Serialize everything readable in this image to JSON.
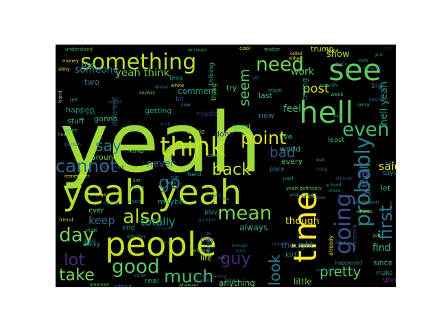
{
  "word_cloud": {
    "background": "#000000",
    "palette": [
      "#440154",
      "#3b528b",
      "#21918c",
      "#5ec962",
      "#a0da39",
      "#fde725"
    ],
    "words": [
      {
        "text": "yeah",
        "color": "#a0da39"
      },
      {
        "text": "time",
        "color": "#fde725"
      },
      {
        "text": "people",
        "color": "#c8e020"
      },
      {
        "text": "yeah yeah",
        "color": "#b5de2b"
      },
      {
        "text": "think",
        "color": "#c8e020"
      },
      {
        "text": "hell",
        "color": "#5ec962"
      },
      {
        "text": "see",
        "color": "#5ec962"
      },
      {
        "text": "something",
        "color": "#b5de2b"
      },
      {
        "text": "need",
        "color": "#7ad151"
      },
      {
        "text": "going",
        "color": "#3b528b"
      },
      {
        "text": "probably",
        "color": "#26828e"
      },
      {
        "text": "even",
        "color": "#3fbc73"
      },
      {
        "text": "first",
        "color": "#2a788e"
      },
      {
        "text": "year",
        "color": "#3b528b"
      },
      {
        "text": "point",
        "color": "#d8e219"
      },
      {
        "text": "say",
        "color": "#2a788e"
      },
      {
        "text": "cannot",
        "color": "#31688e"
      },
      {
        "text": "go",
        "color": "#31688e"
      },
      {
        "text": "back",
        "color": "#c8e020"
      },
      {
        "text": "mean",
        "color": "#7ad151"
      },
      {
        "text": "also",
        "color": "#b5de2b"
      },
      {
        "text": "day",
        "color": "#7ad151"
      },
      {
        "text": "good",
        "color": "#5ec962"
      },
      {
        "text": "lot",
        "color": "#482878"
      },
      {
        "text": "take",
        "color": "#7ad151"
      },
      {
        "text": "much",
        "color": "#3fbc73"
      },
      {
        "text": "guy",
        "color": "#482878"
      },
      {
        "text": "look",
        "color": "#2a788e"
      },
      {
        "text": "pretty",
        "color": "#5ec962"
      },
      {
        "text": "said",
        "color": "#fde725"
      },
      {
        "text": "seem",
        "color": "#5ec962"
      },
      {
        "text": "post",
        "color": "#d8e219"
      },
      {
        "text": "bad",
        "color": "#3b528b"
      },
      {
        "text": "keep",
        "color": "#31688e"
      },
      {
        "text": "totally",
        "color": "#1f9e89"
      },
      {
        "text": "never",
        "color": "#31688e"
      },
      {
        "text": "yeah think",
        "color": "#7ad151"
      },
      {
        "text": "someone",
        "color": "#2a788e"
      },
      {
        "text": "work",
        "color": "#5ec962"
      },
      {
        "text": "feel",
        "color": "#3fbc73"
      },
      {
        "text": "show",
        "color": "#b5de2b"
      },
      {
        "text": "trump",
        "color": "#c8e020"
      },
      {
        "text": "hell yeah",
        "color": "#1f9e89"
      },
      {
        "text": "find",
        "color": "#3fbc73"
      },
      {
        "text": "let",
        "color": "#35b779"
      },
      {
        "text": "kid",
        "color": "#2a788e"
      },
      {
        "text": "thought",
        "color": "#3b528b"
      },
      {
        "text": "little",
        "color": "#7ad151"
      },
      {
        "text": "anything",
        "color": "#5ec962"
      },
      {
        "text": "always",
        "color": "#35b779"
      },
      {
        "text": "though",
        "color": "#fde725"
      },
      {
        "text": "two",
        "color": "#31688e"
      },
      {
        "text": "use",
        "color": "#1f9e89"
      },
      {
        "text": "happen",
        "color": "#1f9e89"
      },
      {
        "text": "stuff",
        "color": "#35b779"
      },
      {
        "text": "gonna",
        "color": "#35b779"
      },
      {
        "text": "getting",
        "color": "#1f9e89"
      },
      {
        "text": "different",
        "color": "#31688e"
      },
      {
        "text": "comment",
        "color": "#1f9e89"
      },
      {
        "text": "kind",
        "color": "#5ec962"
      },
      {
        "text": "around",
        "color": "#7ad151"
      },
      {
        "text": "maybe",
        "color": "#1f9e89"
      },
      {
        "text": "ever",
        "color": "#5ec962"
      },
      {
        "text": "end",
        "color": "#21918c"
      },
      {
        "text": "away",
        "color": "#21918c"
      },
      {
        "text": "used",
        "color": "#5ec962"
      },
      {
        "text": "live",
        "color": "#35b779"
      },
      {
        "text": "world",
        "color": "#35b779"
      },
      {
        "text": "trying",
        "color": "#1f9e89"
      },
      {
        "text": "last",
        "color": "#3fbc73"
      },
      {
        "text": "new",
        "color": "#2a788e"
      },
      {
        "text": "try",
        "color": "#3fbc73"
      },
      {
        "text": "done",
        "color": "#482878"
      },
      {
        "text": "made",
        "color": "#482878"
      },
      {
        "text": "every",
        "color": "#5ec962"
      },
      {
        "text": "since",
        "color": "#3fbc73"
      },
      {
        "text": "give",
        "color": "#482878"
      },
      {
        "text": "real",
        "color": "#1f9e89"
      },
      {
        "text": "life",
        "color": "#b5de2b"
      },
      {
        "text": "buy",
        "color": "#3b528b"
      },
      {
        "text": "big",
        "color": "#2a788e"
      },
      {
        "text": "least",
        "color": "#35b779"
      },
      {
        "text": "talking",
        "color": "#1f9e89"
      },
      {
        "text": "thing",
        "color": "#5ec962"
      },
      {
        "text": "whole",
        "color": "#b5de2b"
      },
      {
        "text": "sound",
        "color": "#7ad151"
      },
      {
        "text": "hard",
        "color": "#1f9e89"
      },
      {
        "text": "play",
        "color": "#21918c"
      },
      {
        "text": "usually",
        "color": "#31688e"
      },
      {
        "text": "less",
        "color": "#21918c"
      },
      {
        "text": "bit",
        "color": "#3b528b"
      },
      {
        "text": "cool",
        "color": "#fde725"
      },
      {
        "text": "yeah definitely",
        "color": "#5ec962"
      },
      {
        "text": "part",
        "color": "#21918c"
      },
      {
        "text": "place",
        "color": "#21918c"
      },
      {
        "text": "month",
        "color": "#21918c"
      },
      {
        "text": "problem",
        "color": "#26828e"
      },
      {
        "text": "saying",
        "color": "#21918c"
      },
      {
        "text": "call",
        "color": "#21918c"
      },
      {
        "text": "already",
        "color": "#fde725"
      },
      {
        "text": "happened",
        "color": "#21918c"
      },
      {
        "text": "make",
        "color": "#21918c"
      },
      {
        "text": "understand",
        "color": "#3fbc73"
      },
      {
        "text": "money",
        "color": "#fde725"
      },
      {
        "text": "reddit",
        "color": "#3b528b"
      },
      {
        "text": "agree",
        "color": "#3fbc73"
      },
      {
        "text": "person",
        "color": "#2a788e"
      },
      {
        "text": "left black",
        "color": "#3b528b"
      },
      {
        "text": "remember",
        "color": "#fde725"
      },
      {
        "text": "friend",
        "color": "#b5de2b"
      },
      {
        "text": "dude",
        "color": "#35b779"
      },
      {
        "text": "without",
        "color": "#2a788e"
      },
      {
        "text": "american",
        "color": "#5ec962"
      },
      {
        "text": "white",
        "color": "#c8e020"
      },
      {
        "text": "account",
        "color": "#3fbc73"
      },
      {
        "text": "matter",
        "color": "#3fbc73"
      },
      {
        "text": "anyway",
        "color": "#7ad151"
      },
      {
        "text": "video",
        "color": "#2a788e"
      },
      {
        "text": "country",
        "color": "#2a788e"
      },
      {
        "text": "movie",
        "color": "#3b528b"
      },
      {
        "text": "picture",
        "color": "#3b528b"
      },
      {
        "text": "whatever",
        "color": "#7ad151"
      },
      {
        "text": "number",
        "color": "#31688e"
      },
      {
        "text": "watch",
        "color": "#fde725"
      },
      {
        "text": "school",
        "color": "#21918c"
      },
      {
        "text": "thread",
        "color": "#3b528b"
      },
      {
        "text": "idea",
        "color": "#2a788e"
      },
      {
        "text": "job",
        "color": "#7ad151"
      },
      {
        "text": "sorry",
        "color": "#35b779"
      },
      {
        "text": "put",
        "color": "#21918c"
      },
      {
        "text": "fun",
        "color": "#1f9e89"
      },
      {
        "text": "state",
        "color": "#21918c"
      },
      {
        "text": "character",
        "color": "#31688e"
      },
      {
        "text": "week",
        "color": "#3fbc73"
      },
      {
        "text": "name",
        "color": "#21918c"
      },
      {
        "text": "important",
        "color": "#31688e"
      },
      {
        "text": "believe",
        "color": "#3b528b"
      },
      {
        "text": "unless",
        "color": "#b5de2b"
      },
      {
        "text": "hour",
        "color": "#3fbc73"
      },
      {
        "text": "run",
        "color": "#21918c"
      },
      {
        "text": "car",
        "color": "#7ad151"
      },
      {
        "text": "fine",
        "color": "#2a788e"
      },
      {
        "text": "care",
        "color": "#3fbc73"
      },
      {
        "text": "might",
        "color": "#21918c"
      },
      {
        "text": "team",
        "color": "#1f9e89"
      },
      {
        "text": "tell",
        "color": "#3fbc73"
      },
      {
        "text": "hand",
        "color": "#7ad151"
      },
      {
        "text": "start",
        "color": "#21918c"
      },
      {
        "text": "change",
        "color": "#fde725"
      },
      {
        "text": "almost",
        "color": "#21918c"
      },
      {
        "text": "guess",
        "color": "#1f9e89"
      },
      {
        "text": "definitely",
        "color": "#21918c"
      },
      {
        "text": "cause",
        "color": "#21918c"
      },
      {
        "text": "basically",
        "color": "#31688e"
      },
      {
        "text": "found",
        "color": "#fde725"
      },
      {
        "text": "game",
        "color": "#31688e"
      },
      {
        "text": "yeah guess",
        "color": "#21918c"
      },
      {
        "text": "called",
        "color": "#fde725"
      },
      {
        "text": "either",
        "color": "#fde725"
      },
      {
        "text": "suck",
        "color": "#3b528b"
      },
      {
        "text": "saw",
        "color": "#21918c"
      },
      {
        "text": "hair long",
        "color": "#5ec962"
      },
      {
        "text": "kinda",
        "color": "#2a788e"
      },
      {
        "text": "shitty",
        "color": "#fde725"
      },
      {
        "text": "heard",
        "color": "#5ec962"
      },
      {
        "text": "wait",
        "color": "#21918c"
      },
      {
        "text": "using",
        "color": "#31688e"
      },
      {
        "text": "check",
        "color": "#21918c"
      },
      {
        "text": "many",
        "color": "#31688e"
      },
      {
        "text": "dont",
        "color": "#3b528b"
      },
      {
        "text": "enough",
        "color": "#2a788e"
      },
      {
        "text": "season",
        "color": "#482878"
      },
      {
        "text": "everything",
        "color": "#3b528b"
      },
      {
        "text": "another",
        "color": "#3b528b"
      },
      {
        "text": "anyone",
        "color": "#3fbc73"
      },
      {
        "text": "wrong",
        "color": "#3b528b"
      },
      {
        "text": "mind",
        "color": "#21918c"
      },
      {
        "text": "sure",
        "color": "#482878"
      },
      {
        "text": "sub",
        "color": "#21918c"
      },
      {
        "text": "yet",
        "color": "#31688e"
      },
      {
        "text": "got",
        "color": "#482878"
      }
    ]
  }
}
